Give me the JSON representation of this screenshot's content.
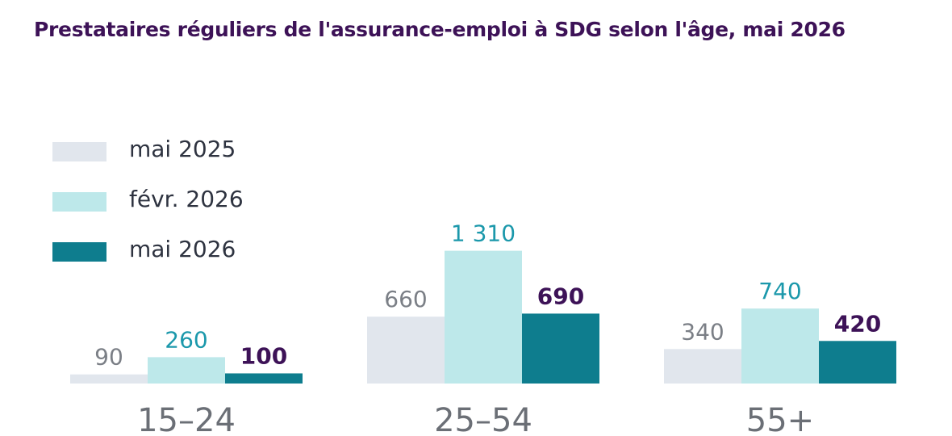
{
  "title": "Prestataires réguliers de l'assurance-emploi à SDG selon l'âge, mai 2026",
  "legend": [
    {
      "label": "mai 2025",
      "color": "#e1e6ed"
    },
    {
      "label": "févr. 2026",
      "color": "#bde8ea"
    },
    {
      "label": "mai 2026",
      "color": "#0e7d8e"
    }
  ],
  "colors": {
    "label_prev_year": "#7b7f86",
    "label_prev_month": "#1b98ab",
    "label_current": "#3d1257",
    "category_text": "#6b6f76"
  },
  "chart_data": {
    "type": "bar",
    "title": "Prestataires réguliers de l'assurance-emploi à SDG selon l'âge, mai 2026",
    "categories": [
      "15–24",
      "25–54",
      "55+"
    ],
    "series": [
      {
        "name": "mai 2025",
        "values": [
          90,
          660,
          340
        ],
        "labels": [
          "90",
          "660",
          "340"
        ]
      },
      {
        "name": "févr. 2026",
        "values": [
          260,
          1310,
          740
        ],
        "labels": [
          "260",
          "1 310",
          "740"
        ]
      },
      {
        "name": "mai 2026",
        "values": [
          100,
          690,
          420
        ],
        "labels": [
          "100",
          "690",
          "420"
        ]
      }
    ],
    "ylim": [
      0,
      1600
    ],
    "grid": false,
    "legend_position": "top-left"
  }
}
